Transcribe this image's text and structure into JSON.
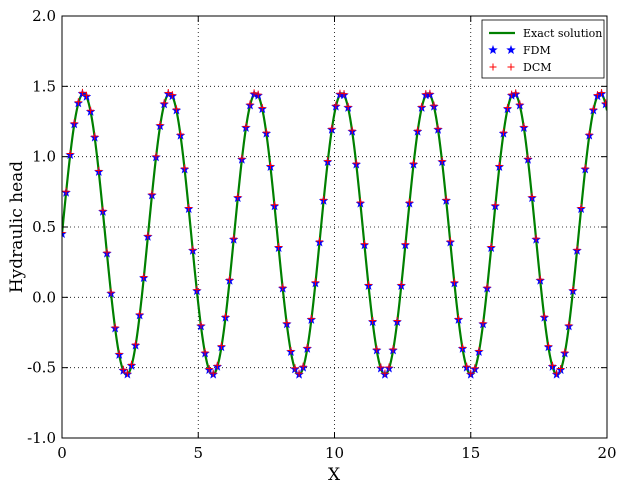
{
  "chart_data": {
    "type": "line",
    "title": "",
    "xlabel": "X",
    "ylabel": "Hydraulic head",
    "xlim": [
      0,
      20
    ],
    "ylim": [
      -1.0,
      2.0
    ],
    "x_ticks": [
      0,
      5,
      10,
      15,
      20
    ],
    "x_tick_labels": [
      "0",
      "5",
      "10",
      "15",
      "20"
    ],
    "y_ticks": [
      -1.0,
      -0.5,
      0.0,
      0.5,
      1.0,
      1.5,
      2.0
    ],
    "y_tick_labels": [
      "-1.0",
      "-0.5",
      "0.0",
      "0.5",
      "1.0",
      "1.5",
      "2.0"
    ],
    "grid": true,
    "grid_style": "dotted",
    "legend_position": "top-right",
    "function": {
      "form": "offset + amplitude * sin(2*pi*x/period + phase)",
      "offset": 0.45,
      "amplitude": 1.0,
      "period": 3.16,
      "phase": 0.0
    },
    "marker_spacing": 0.15,
    "series": [
      {
        "name": "Exact solution",
        "kind": "line",
        "color": "#008000"
      },
      {
        "name": "FDM",
        "kind": "marker",
        "marker": "star",
        "color": "#0000ff"
      },
      {
        "name": "DCM",
        "kind": "marker",
        "marker": "plus",
        "color": "#ff0000"
      }
    ]
  }
}
